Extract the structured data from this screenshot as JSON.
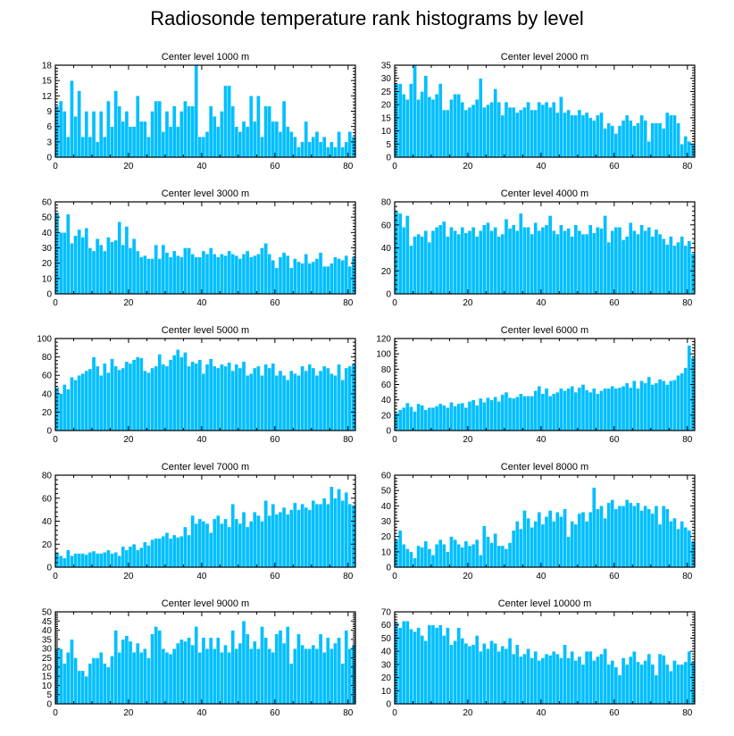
{
  "title": "Radiosonde temperature rank histograms by level",
  "colors": {
    "bar": "#00bfff",
    "axis": "#000000"
  },
  "chart_data": [
    {
      "type": "bar",
      "title": "Center level 1000 m",
      "xlim": [
        0,
        82
      ],
      "ylim": [
        0,
        18
      ],
      "xticks": [
        0,
        20,
        40,
        60,
        80
      ],
      "yticks": [
        0,
        3,
        6,
        9,
        12,
        15,
        18
      ],
      "values": [
        10,
        11,
        9,
        4,
        15,
        8,
        13,
        4,
        9,
        4,
        9,
        3,
        9,
        4,
        11,
        6,
        13,
        10,
        7,
        9,
        6,
        6,
        12,
        7,
        7,
        4,
        9,
        11,
        11,
        5,
        9,
        6,
        10,
        6,
        9,
        11,
        10,
        10,
        18,
        4,
        4,
        5,
        10,
        8,
        6,
        9,
        14,
        14,
        10,
        6,
        5,
        7,
        6,
        12,
        7,
        12,
        4,
        10,
        10,
        7,
        7,
        5,
        11,
        6,
        5,
        4,
        2,
        3,
        7,
        3,
        4,
        5,
        3,
        4,
        2,
        3,
        2,
        5,
        2,
        3,
        5,
        4
      ]
    },
    {
      "type": "bar",
      "title": "Center level 2000 m",
      "xlim": [
        0,
        82
      ],
      "ylim": [
        0,
        35
      ],
      "xticks": [
        0,
        20,
        40,
        60,
        80
      ],
      "yticks": [
        0,
        5,
        10,
        15,
        20,
        25,
        30,
        35
      ],
      "values": [
        28,
        28,
        24,
        22,
        28,
        35,
        22,
        25,
        31,
        23,
        22,
        24,
        28,
        18,
        18,
        22,
        24,
        24,
        21,
        18,
        19,
        20,
        22,
        30,
        19,
        20,
        21,
        26,
        21,
        16,
        21,
        19,
        19,
        17,
        18,
        19,
        21,
        18,
        18,
        21,
        20,
        21,
        19,
        21,
        17,
        23,
        17,
        18,
        16,
        16,
        18,
        16,
        17,
        15,
        14,
        16,
        17,
        11,
        13,
        12,
        9,
        12,
        14,
        16,
        14,
        12,
        13,
        16,
        14,
        6,
        13,
        13,
        13,
        11,
        17,
        16,
        16,
        13,
        5,
        8,
        6,
        5
      ]
    },
    {
      "type": "bar",
      "title": "Center level 3000 m",
      "xlim": [
        0,
        82
      ],
      "ylim": [
        0,
        60
      ],
      "xticks": [
        0,
        20,
        40,
        60,
        80
      ],
      "yticks": [
        0,
        10,
        20,
        30,
        40,
        50,
        60
      ],
      "values": [
        53,
        40,
        40,
        52,
        33,
        38,
        42,
        37,
        43,
        30,
        28,
        36,
        32,
        28,
        37,
        34,
        35,
        47,
        32,
        44,
        30,
        36,
        28,
        24,
        25,
        23,
        23,
        32,
        23,
        32,
        27,
        24,
        28,
        25,
        24,
        30,
        30,
        26,
        24,
        24,
        28,
        26,
        30,
        26,
        24,
        26,
        25,
        28,
        26,
        25,
        23,
        26,
        28,
        24,
        25,
        26,
        30,
        33,
        26,
        22,
        17,
        24,
        27,
        25,
        17,
        23,
        21,
        20,
        26,
        20,
        21,
        23,
        27,
        18,
        18,
        20,
        24,
        23,
        22,
        25,
        18,
        24
      ]
    },
    {
      "type": "bar",
      "title": "Center level 4000 m",
      "xlim": [
        0,
        82
      ],
      "ylim": [
        0,
        80
      ],
      "xticks": [
        0,
        20,
        40,
        60,
        80
      ],
      "yticks": [
        0,
        20,
        40,
        60,
        80
      ],
      "values": [
        72,
        70,
        58,
        68,
        42,
        50,
        52,
        50,
        55,
        45,
        55,
        58,
        60,
        63,
        50,
        58,
        55,
        52,
        58,
        53,
        55,
        58,
        50,
        55,
        60,
        62,
        55,
        58,
        50,
        52,
        65,
        57,
        60,
        55,
        70,
        58,
        58,
        52,
        62,
        55,
        58,
        60,
        68,
        55,
        52,
        60,
        55,
        57,
        50,
        60,
        55,
        52,
        52,
        60,
        53,
        58,
        57,
        68,
        45,
        55,
        58,
        58,
        47,
        50,
        62,
        55,
        52,
        60,
        55,
        58,
        50,
        56,
        52,
        48,
        43,
        50,
        42,
        45,
        50,
        42,
        46,
        35
      ]
    },
    {
      "type": "bar",
      "title": "Center level 5000 m",
      "xlim": [
        0,
        82
      ],
      "ylim": [
        0,
        100
      ],
      "xticks": [
        0,
        20,
        40,
        60,
        80
      ],
      "yticks": [
        0,
        20,
        40,
        60,
        80,
        100
      ],
      "values": [
        47,
        40,
        50,
        45,
        58,
        55,
        60,
        62,
        65,
        67,
        80,
        70,
        60,
        73,
        63,
        78,
        70,
        66,
        68,
        75,
        73,
        77,
        80,
        79,
        65,
        63,
        68,
        70,
        83,
        72,
        70,
        77,
        82,
        88,
        80,
        85,
        70,
        75,
        73,
        77,
        62,
        72,
        78,
        70,
        68,
        72,
        70,
        74,
        65,
        72,
        68,
        75,
        60,
        62,
        68,
        70,
        60,
        72,
        68,
        73,
        60,
        65,
        60,
        55,
        65,
        62,
        60,
        70,
        65,
        72,
        68,
        60,
        65,
        70,
        68,
        62,
        60,
        72,
        55,
        68,
        70,
        73
      ]
    },
    {
      "type": "bar",
      "title": "Center level 6000 m",
      "xlim": [
        0,
        82
      ],
      "ylim": [
        0,
        120
      ],
      "xticks": [
        0,
        20,
        40,
        60,
        80
      ],
      "yticks": [
        0,
        20,
        40,
        60,
        80,
        100,
        120
      ],
      "values": [
        23,
        27,
        30,
        36,
        31,
        25,
        35,
        33,
        27,
        30,
        30,
        32,
        35,
        33,
        30,
        37,
        32,
        35,
        36,
        30,
        38,
        40,
        33,
        42,
        37,
        43,
        40,
        44,
        38,
        47,
        50,
        43,
        42,
        44,
        48,
        45,
        45,
        45,
        52,
        58,
        48,
        55,
        45,
        48,
        50,
        55,
        52,
        55,
        58,
        50,
        56,
        60,
        53,
        50,
        55,
        48,
        52,
        55,
        55,
        58,
        55,
        56,
        58,
        62,
        56,
        65,
        55,
        65,
        62,
        70,
        60,
        62,
        67,
        65,
        60,
        65,
        66,
        72,
        75,
        82,
        111,
        95
      ]
    },
    {
      "type": "bar",
      "title": "Center level 7000 m",
      "xlim": [
        0,
        82
      ],
      "ylim": [
        0,
        80
      ],
      "xticks": [
        0,
        20,
        40,
        60,
        80
      ],
      "yticks": [
        0,
        20,
        40,
        60,
        80
      ],
      "values": [
        13,
        10,
        8,
        15,
        10,
        12,
        12,
        12,
        11,
        13,
        14,
        12,
        12,
        13,
        15,
        12,
        13,
        10,
        18,
        15,
        18,
        20,
        15,
        17,
        22,
        19,
        24,
        25,
        25,
        27,
        30,
        25,
        28,
        26,
        27,
        35,
        28,
        45,
        38,
        42,
        40,
        38,
        30,
        42,
        45,
        38,
        42,
        35,
        55,
        42,
        38,
        48,
        35,
        40,
        48,
        45,
        40,
        58,
        45,
        55,
        46,
        48,
        52,
        46,
        50,
        56,
        50,
        55,
        52,
        50,
        58,
        55,
        55,
        60,
        55,
        70,
        60,
        68,
        58,
        65,
        55,
        54
      ]
    },
    {
      "type": "bar",
      "title": "Center level 8000 m",
      "xlim": [
        0,
        82
      ],
      "ylim": [
        0,
        60
      ],
      "xticks": [
        0,
        20,
        40,
        60,
        80
      ],
      "yticks": [
        0,
        10,
        20,
        30,
        40,
        50,
        60
      ],
      "values": [
        18,
        24,
        15,
        12,
        10,
        6,
        14,
        13,
        17,
        12,
        8,
        15,
        18,
        15,
        10,
        20,
        18,
        15,
        13,
        17,
        14,
        15,
        18,
        8,
        27,
        20,
        16,
        22,
        14,
        14,
        12,
        16,
        24,
        30,
        25,
        37,
        32,
        26,
        30,
        36,
        28,
        33,
        37,
        30,
        36,
        33,
        38,
        20,
        30,
        28,
        35,
        36,
        30,
        36,
        52,
        38,
        40,
        32,
        42,
        44,
        38,
        40,
        40,
        44,
        42,
        40,
        42,
        37,
        40,
        38,
        35,
        40,
        28,
        40,
        38,
        30,
        32,
        25,
        30,
        26,
        24,
        17
      ]
    },
    {
      "type": "bar",
      "title": "Center level 9000 m",
      "xlim": [
        0,
        82
      ],
      "ylim": [
        0,
        50
      ],
      "xticks": [
        0,
        20,
        40,
        60,
        80
      ],
      "yticks": [
        0,
        5,
        10,
        15,
        20,
        25,
        30,
        35,
        40,
        45,
        50
      ],
      "values": [
        30,
        30,
        22,
        28,
        35,
        25,
        18,
        18,
        15,
        22,
        25,
        25,
        28,
        22,
        20,
        26,
        40,
        28,
        35,
        37,
        34,
        28,
        33,
        28,
        30,
        25,
        38,
        42,
        40,
        30,
        28,
        27,
        30,
        33,
        35,
        34,
        36,
        32,
        42,
        28,
        36,
        30,
        36,
        30,
        36,
        28,
        32,
        28,
        40,
        30,
        33,
        45,
        38,
        30,
        34,
        30,
        42,
        36,
        30,
        28,
        38,
        40,
        33,
        42,
        22,
        30,
        38,
        32,
        30,
        30,
        32,
        30,
        38,
        28,
        36,
        30,
        33,
        36,
        22,
        40,
        30,
        32
      ]
    },
    {
      "type": "bar",
      "title": "Center level 10000 m",
      "xlim": [
        0,
        82
      ],
      "ylim": [
        0,
        70
      ],
      "xticks": [
        0,
        20,
        40,
        60,
        80
      ],
      "yticks": [
        0,
        10,
        20,
        30,
        40,
        50,
        60,
        70
      ],
      "values": [
        62,
        58,
        63,
        63,
        57,
        55,
        58,
        52,
        48,
        60,
        60,
        58,
        60,
        52,
        58,
        45,
        48,
        58,
        50,
        46,
        44,
        45,
        52,
        40,
        46,
        42,
        48,
        46,
        40,
        44,
        42,
        50,
        38,
        45,
        36,
        38,
        42,
        35,
        40,
        33,
        35,
        38,
        37,
        40,
        38,
        35,
        45,
        35,
        40,
        33,
        36,
        30,
        40,
        40,
        33,
        36,
        38,
        42,
        30,
        33,
        28,
        22,
        35,
        30,
        36,
        40,
        32,
        30,
        33,
        38,
        30,
        22,
        38,
        37,
        30,
        25,
        33,
        30,
        30,
        32,
        40,
        32
      ]
    }
  ]
}
